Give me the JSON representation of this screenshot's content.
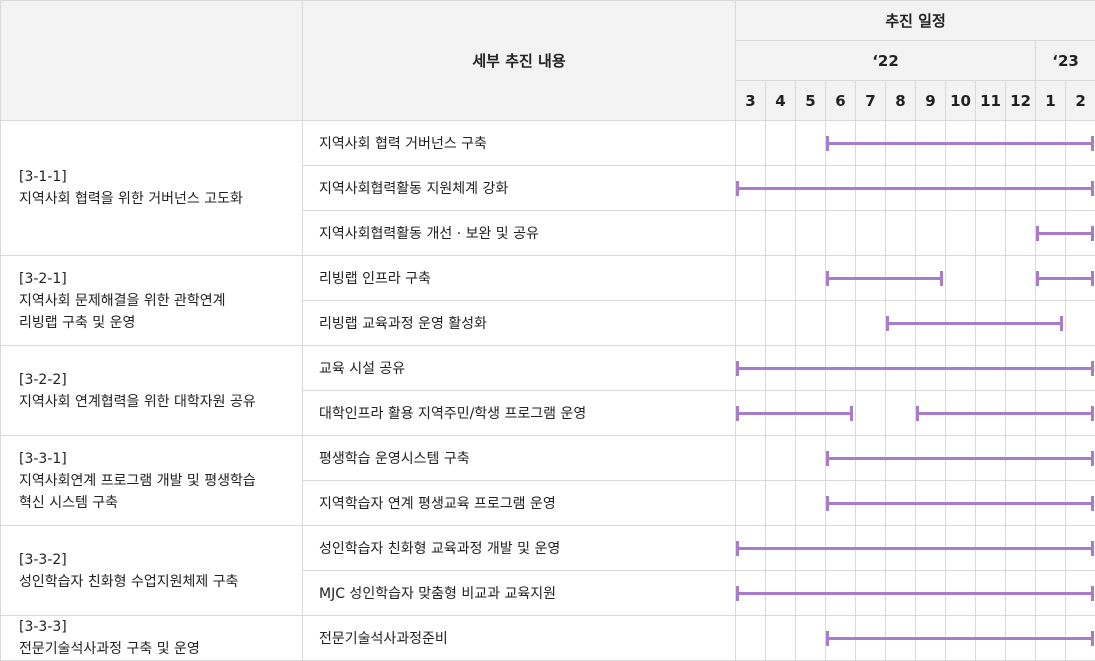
{
  "header": {
    "detail_col": "세부 추진 내용",
    "schedule": "추진 일정",
    "year_22": "‘22",
    "year_23": "‘23",
    "months": [
      "3",
      "4",
      "5",
      "6",
      "7",
      "8",
      "9",
      "10",
      "11",
      "12",
      "1",
      "2"
    ]
  },
  "groups": [
    {
      "label": "[3-1-1]\n지역사회 협력을 위한 거버넌스 고도화",
      "rows": [
        {
          "text": "지역사회 협력 거버넌스 구축",
          "bars": [
            [
              3,
              12
            ]
          ]
        },
        {
          "text": "지역사회협력활동 지원체계 강화",
          "bars": [
            [
              0,
              12
            ]
          ]
        },
        {
          "text": "지역사회협력활동 개선 · 보완 및 공유",
          "bars": [
            [
              10,
              12
            ]
          ]
        }
      ]
    },
    {
      "label": "[3-2-1]\n지역사회 문제해결을 위한 관학연계\n리빙랩 구축 및 운영",
      "rows": [
        {
          "text": "리빙랩 인프라 구축",
          "bars": [
            [
              3,
              6.9
            ],
            [
              10,
              12
            ]
          ]
        },
        {
          "text": "리빙랩 교육과정 운영 활성화",
          "bars": [
            [
              5,
              10.9
            ]
          ]
        }
      ]
    },
    {
      "label": "[3-2-2]\n지역사회 연계협력을 위한 대학자원 공유",
      "rows": [
        {
          "text": "교육 시설 공유",
          "bars": [
            [
              0,
              12
            ]
          ]
        },
        {
          "text": "대학인프라 활용 지역주민/학생 프로그램 운영",
          "bars": [
            [
              0,
              3.9
            ],
            [
              6,
              12
            ]
          ]
        }
      ]
    },
    {
      "label": "[3-3-1]\n지역사회연계 프로그램 개발 및 평생학습\n혁신 시스템 구축",
      "rows": [
        {
          "text": "평생학습 운영시스템 구축",
          "bars": [
            [
              3,
              12
            ]
          ]
        },
        {
          "text": "지역학습자 연계 평생교육 프로그램 운영",
          "bars": [
            [
              3,
              12
            ]
          ]
        }
      ]
    },
    {
      "label": "[3-3-2]\n성인학습자 친화형 수업지원체제 구축",
      "rows": [
        {
          "text": "성인학습자 친화형 교육과정 개발 및 운영",
          "bars": [
            [
              0,
              12
            ]
          ]
        },
        {
          "text": "MJC 성인학습자 맞춤형 비교과 교육지원",
          "bars": [
            [
              0,
              12
            ]
          ]
        }
      ]
    },
    {
      "label": "[3-3-3]\n전문기술석사과정 구축 및 운영",
      "rows": [
        {
          "text": "전문기술석사과정준비",
          "bars": [
            [
              3,
              12
            ]
          ]
        }
      ]
    }
  ],
  "colors": {
    "bar": "#a97ccb",
    "header_bg": "#f3f3f3",
    "border": "#d9d9d9"
  }
}
